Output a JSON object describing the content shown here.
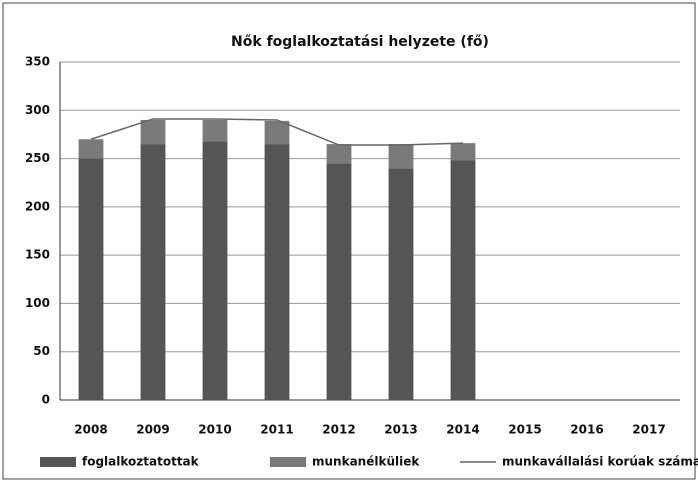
{
  "chart_data": {
    "type": "stacked_bar_line",
    "title": "Nők foglalkoztatási helyzete (fő)",
    "categories": [
      "2008",
      "2009",
      "2010",
      "2011",
      "2012",
      "2013",
      "2014",
      "2015",
      "2016",
      "2017"
    ],
    "series": [
      {
        "name": "foglalkoztatottak",
        "type": "bar",
        "color": "#555555",
        "values": [
          250,
          265,
          268,
          265,
          245,
          240,
          248,
          null,
          null,
          null
        ]
      },
      {
        "name": "munkanélküliek",
        "type": "bar",
        "color": "#7a7a7a",
        "values": [
          20,
          25,
          22,
          24,
          20,
          25,
          18,
          null,
          null,
          null
        ]
      },
      {
        "name": "munkavállalási korúak száma",
        "type": "line",
        "color": "#666666",
        "values": [
          270,
          291,
          291,
          290,
          264,
          264,
          266,
          null,
          null,
          null
        ]
      }
    ],
    "ylim": [
      0,
      350
    ],
    "yticks": [
      0,
      50,
      100,
      150,
      200,
      250,
      300,
      350
    ],
    "grid": true,
    "legend": "bottom"
  }
}
